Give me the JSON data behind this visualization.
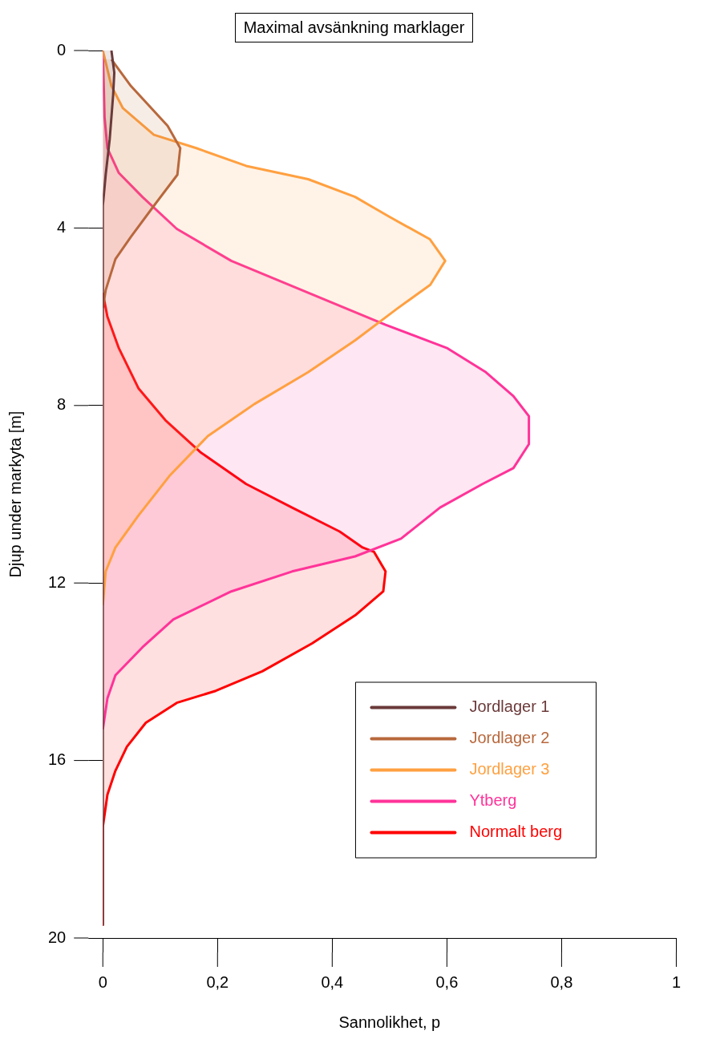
{
  "chart_data": {
    "type": "area",
    "title": "Maximal avsänkning marklager",
    "xlabel": "Sannolikhet, p",
    "ylabel": "Djup under markyta [m]",
    "xlim": [
      0,
      1
    ],
    "ylim": [
      20,
      0
    ],
    "xticks": [
      0,
      {
        "value": 0.2,
        "label": "0,2"
      },
      {
        "value": 0.4,
        "label": "0,4"
      },
      {
        "value": 0.6,
        "label": "0,6"
      },
      {
        "value": 0.8,
        "label": "0,8"
      },
      1
    ],
    "yticks": [
      0,
      4,
      8,
      12,
      16,
      20
    ],
    "grid": false,
    "legend": "bottom right",
    "series": [
      {
        "name": "Jordlager 1",
        "color": "#6b3a3a",
        "x": [
          0.015,
          0.02,
          0.018,
          0.012,
          0.005,
          0,
          0
        ],
        "values": [
          0,
          0.5,
          1,
          2,
          2.8,
          3.5,
          19.7
        ]
      },
      {
        "name": "Jordlager 2",
        "color": "#b8683c",
        "x": [
          0.015,
          0.049,
          0.113,
          0.135,
          0.13,
          0.089,
          0.049,
          0.022,
          0.005,
          0
        ],
        "values": [
          0.2,
          0.8,
          1.7,
          2.2,
          2.8,
          3.5,
          4.2,
          4.7,
          5.4,
          5.8
        ]
      },
      {
        "name": "Jordlager 3",
        "color": "#ffa040",
        "x": [
          0,
          0.015,
          0.035,
          0.089,
          0.163,
          0.25,
          0.358,
          0.44,
          0.5,
          0.57,
          0.597,
          0.571,
          0.513,
          0.44,
          0.358,
          0.264,
          0.183,
          0.116,
          0.062,
          0.022,
          0.005,
          0
        ],
        "values": [
          0,
          0.8,
          1.3,
          1.9,
          2.2,
          2.6,
          2.9,
          3.3,
          3.75,
          4.25,
          4.74,
          5.28,
          5.82,
          6.53,
          7.25,
          7.97,
          8.69,
          9.59,
          10.48,
          11.2,
          11.74,
          12.5
        ]
      },
      {
        "name": "Ytberg",
        "color": "#ff3399",
        "x": [
          0,
          0.003,
          0.008,
          0.028,
          0.069,
          0.129,
          0.224,
          0.358,
          0.493,
          0.601,
          0.668,
          0.716,
          0.743,
          0.743,
          0.716,
          0.662,
          0.588,
          0.52,
          0.44,
          0.33,
          0.224,
          0.123,
          0.069,
          0.022,
          0.008,
          0
        ],
        "values": [
          0,
          1.5,
          2.2,
          2.76,
          3.3,
          4.02,
          4.74,
          5.46,
          6.18,
          6.71,
          7.25,
          7.79,
          8.24,
          8.87,
          9.41,
          9.77,
          10.3,
          11,
          11.4,
          11.74,
          12.19,
          12.82,
          13.45,
          14.08,
          14.6,
          15.3
        ]
      },
      {
        "name": "Normalt berg",
        "color": "#ff0000",
        "x": [
          0,
          0.008,
          0.028,
          0.062,
          0.109,
          0.17,
          0.25,
          0.33,
          0.413,
          0.453,
          0.473,
          0.493,
          0.489,
          0.44,
          0.365,
          0.278,
          0.197,
          0.129,
          0.075,
          0.042,
          0.022,
          0.008,
          0,
          0
        ],
        "values": [
          5.46,
          6,
          6.71,
          7.61,
          8.33,
          9.05,
          9.77,
          10.3,
          10.84,
          11.2,
          11.3,
          11.74,
          12.19,
          12.73,
          13.36,
          13.99,
          14.43,
          14.7,
          15.15,
          15.69,
          16.23,
          16.77,
          17.5,
          19.7
        ]
      }
    ]
  }
}
